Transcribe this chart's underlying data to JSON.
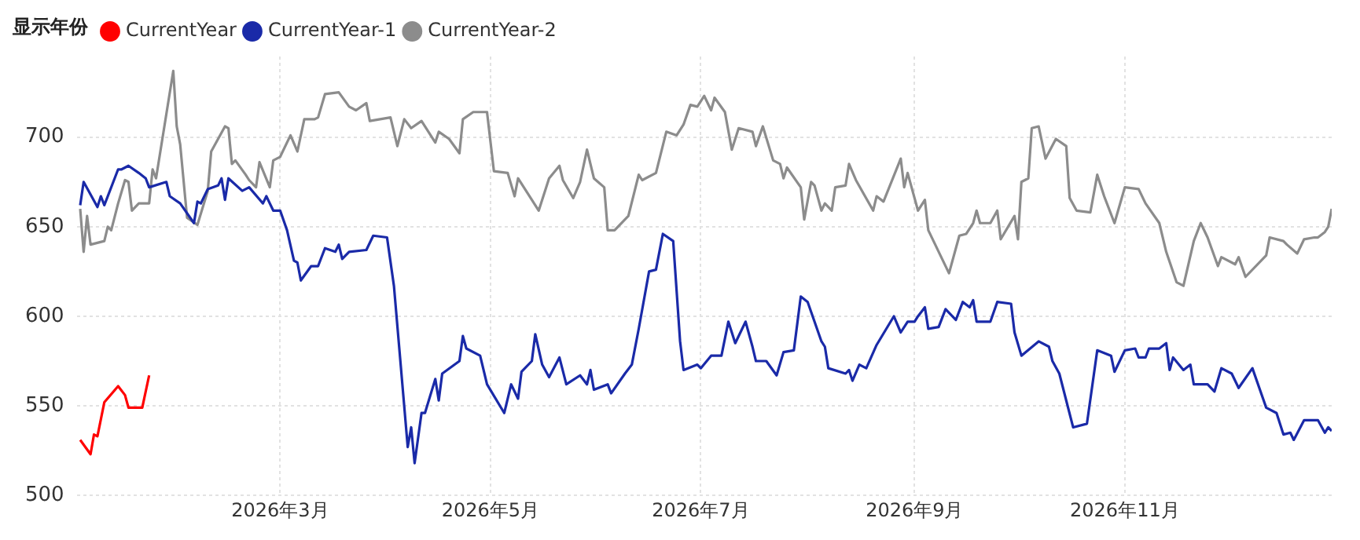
{
  "chart_data": {
    "type": "line",
    "legend_title": "显示年份",
    "legend": "top left",
    "grid": true,
    "marker": "none",
    "line_style": "solid",
    "ylim": [
      500,
      745
    ],
    "yticks": [
      500,
      550,
      600,
      650,
      700
    ],
    "xlim": [
      "2026-01-01",
      "2026-12-31"
    ],
    "xticks": [
      {
        "value": "2026-03-01",
        "label": "2026年3月"
      },
      {
        "value": "2026-05-01",
        "label": "2026年5月"
      },
      {
        "value": "2026-07-01",
        "label": "2026年7月"
      },
      {
        "value": "2026-09-01",
        "label": "2026年9月"
      },
      {
        "value": "2026-11-01",
        "label": "2026年11月"
      }
    ],
    "series": [
      {
        "name": "CurrentYear",
        "color": "#ff0000",
        "x": [
          "2026-01-02",
          "2026-01-05",
          "2026-01-06",
          "2026-01-07",
          "2026-01-09",
          "2026-01-13",
          "2026-01-15",
          "2026-01-16",
          "2026-01-20",
          "2026-01-22"
        ],
        "values": [
          531,
          523,
          534,
          533,
          552,
          561,
          556,
          549,
          549,
          567
        ]
      },
      {
        "name": "CurrentYear-1",
        "color": "#1a2aa8",
        "x": [
          "2026-01-02",
          "2026-01-03",
          "2026-01-07",
          "2026-01-08",
          "2026-01-09",
          "2026-01-13",
          "2026-01-14",
          "2026-01-16",
          "2026-01-19",
          "2026-01-21",
          "2026-01-22",
          "2026-01-27",
          "2026-01-28",
          "2026-01-31",
          "2026-02-04",
          "2026-02-05",
          "2026-02-06",
          "2026-02-08",
          "2026-02-11",
          "2026-02-12",
          "2026-02-13",
          "2026-02-14",
          "2026-02-18",
          "2026-02-20",
          "2026-02-24",
          "2026-02-25",
          "2026-02-27",
          "2026-03-01",
          "2026-03-03",
          "2026-03-05",
          "2026-03-06",
          "2026-03-07",
          "2026-03-10",
          "2026-03-12",
          "2026-03-14",
          "2026-03-17",
          "2026-03-18",
          "2026-03-19",
          "2026-03-21",
          "2026-03-26",
          "2026-03-28",
          "2026-04-01",
          "2026-04-03",
          "2026-04-07",
          "2026-04-08",
          "2026-04-09",
          "2026-04-11",
          "2026-04-12",
          "2026-04-15",
          "2026-04-16",
          "2026-04-17",
          "2026-04-22",
          "2026-04-23",
          "2026-04-24",
          "2026-04-28",
          "2026-04-30",
          "2026-05-05",
          "2026-05-07",
          "2026-05-09",
          "2026-05-10",
          "2026-05-13",
          "2026-05-14",
          "2026-05-16",
          "2026-05-18",
          "2026-05-21",
          "2026-05-23",
          "2026-05-27",
          "2026-05-29",
          "2026-05-30",
          "2026-05-31",
          "2026-06-04",
          "2026-06-05",
          "2026-06-09",
          "2026-06-11",
          "2026-06-13",
          "2026-06-16",
          "2026-06-18",
          "2026-06-20",
          "2026-06-23",
          "2026-06-25",
          "2026-06-26",
          "2026-06-30",
          "2026-07-01",
          "2026-07-04",
          "2026-07-07",
          "2026-07-09",
          "2026-07-11",
          "2026-07-14",
          "2026-07-16",
          "2026-07-17",
          "2026-07-20",
          "2026-07-23",
          "2026-07-25",
          "2026-07-28",
          "2026-07-30",
          "2026-08-01",
          "2026-08-05",
          "2026-08-06",
          "2026-08-07",
          "2026-08-12",
          "2026-08-13",
          "2026-08-14",
          "2026-08-16",
          "2026-08-18",
          "2026-08-21",
          "2026-08-26",
          "2026-08-28",
          "2026-08-30",
          "2026-09-01",
          "2026-09-02",
          "2026-09-04",
          "2026-09-05",
          "2026-09-08",
          "2026-09-10",
          "2026-09-13",
          "2026-09-15",
          "2026-09-17",
          "2026-09-18",
          "2026-09-19",
          "2026-09-23",
          "2026-09-25",
          "2026-09-29",
          "2026-09-30",
          "2026-10-02",
          "2026-10-07",
          "2026-10-10",
          "2026-10-11",
          "2026-10-13",
          "2026-10-15",
          "2026-10-17",
          "2026-10-21",
          "2026-10-24",
          "2026-10-28",
          "2026-10-29",
          "2026-11-01",
          "2026-11-04",
          "2026-11-05",
          "2026-11-07",
          "2026-11-08",
          "2026-11-11",
          "2026-11-13",
          "2026-11-14",
          "2026-11-15",
          "2026-11-18",
          "2026-11-20",
          "2026-11-21",
          "2026-11-25",
          "2026-11-27",
          "2026-11-29",
          "2026-12-02",
          "2026-12-04",
          "2026-12-08",
          "2026-12-12",
          "2026-12-15",
          "2026-12-17",
          "2026-12-19",
          "2026-12-20",
          "2026-12-23",
          "2026-12-27",
          "2026-12-29",
          "2026-12-30",
          "2026-12-31"
        ],
        "values": [
          662,
          675,
          661,
          667,
          662,
          682,
          682,
          684,
          680,
          677,
          672,
          675,
          667,
          663,
          652,
          664,
          663,
          671,
          673,
          677,
          665,
          677,
          670,
          672,
          663,
          667,
          659,
          659,
          648,
          631,
          630,
          620,
          628,
          628,
          638,
          636,
          640,
          632,
          636,
          637,
          645,
          644,
          617,
          527,
          538,
          518,
          546,
          546,
          565,
          553,
          568,
          575,
          589,
          582,
          578,
          562,
          546,
          562,
          554,
          569,
          575,
          590,
          573,
          566,
          577,
          562,
          567,
          562,
          570,
          559,
          562,
          557,
          568,
          573,
          593,
          625,
          626,
          646,
          642,
          586,
          570,
          573,
          571,
          578,
          578,
          597,
          585,
          597,
          583,
          575,
          575,
          567,
          580,
          581,
          611,
          608,
          586,
          583,
          571,
          568,
          570,
          564,
          573,
          571,
          584,
          600,
          591,
          597,
          597,
          600,
          605,
          593,
          594,
          604,
          598,
          608,
          605,
          609,
          597,
          597,
          608,
          607,
          591,
          578,
          586,
          583,
          575,
          568,
          553,
          538,
          540,
          581,
          578,
          569,
          581,
          582,
          577,
          577,
          582,
          582,
          585,
          570,
          577,
          570,
          573,
          562,
          562,
          558,
          571,
          568,
          560,
          571,
          549,
          546,
          534,
          535,
          531,
          542,
          542,
          535,
          538,
          536
        ]
      },
      {
        "name": "CurrentYear-2",
        "color": "#8c8c8c",
        "x": [
          "2026-01-02",
          "2026-01-03",
          "2026-01-04",
          "2026-01-05",
          "2026-01-09",
          "2026-01-10",
          "2026-01-11",
          "2026-01-13",
          "2026-01-15",
          "2026-01-16",
          "2026-01-17",
          "2026-01-19",
          "2026-01-22",
          "2026-01-23",
          "2026-01-24",
          "2026-01-29",
          "2026-01-30",
          "2026-01-31",
          "2026-02-02",
          "2026-02-05",
          "2026-02-08",
          "2026-02-09",
          "2026-02-13",
          "2026-02-14",
          "2026-02-15",
          "2026-02-16",
          "2026-02-19",
          "2026-02-20",
          "2026-02-22",
          "2026-02-23",
          "2026-02-26",
          "2026-02-27",
          "2026-03-01",
          "2026-03-04",
          "2026-03-06",
          "2026-03-08",
          "2026-03-11",
          "2026-03-12",
          "2026-03-14",
          "2026-03-18",
          "2026-03-21",
          "2026-03-23",
          "2026-03-26",
          "2026-03-27",
          "2026-04-02",
          "2026-04-04",
          "2026-04-06",
          "2026-04-08",
          "2026-04-11",
          "2026-04-15",
          "2026-04-16",
          "2026-04-19",
          "2026-04-22",
          "2026-04-23",
          "2026-04-26",
          "2026-04-28",
          "2026-04-30",
          "2026-05-02",
          "2026-05-06",
          "2026-05-08",
          "2026-05-09",
          "2026-05-15",
          "2026-05-18",
          "2026-05-21",
          "2026-05-22",
          "2026-05-25",
          "2026-05-27",
          "2026-05-29",
          "2026-05-31",
          "2026-06-03",
          "2026-06-04",
          "2026-06-06",
          "2026-06-10",
          "2026-06-13",
          "2026-06-14",
          "2026-06-18",
          "2026-06-21",
          "2026-06-24",
          "2026-06-26",
          "2026-06-28",
          "2026-06-30",
          "2026-07-02",
          "2026-07-04",
          "2026-07-05",
          "2026-07-08",
          "2026-07-10",
          "2026-07-12",
          "2026-07-16",
          "2026-07-17",
          "2026-07-19",
          "2026-07-22",
          "2026-07-24",
          "2026-07-25",
          "2026-07-26",
          "2026-07-30",
          "2026-07-31",
          "2026-08-02",
          "2026-08-03",
          "2026-08-05",
          "2026-08-06",
          "2026-08-08",
          "2026-08-09",
          "2026-08-12",
          "2026-08-13",
          "2026-08-15",
          "2026-08-20",
          "2026-08-21",
          "2026-08-23",
          "2026-08-28",
          "2026-08-29",
          "2026-08-30",
          "2026-09-02",
          "2026-09-04",
          "2026-09-05",
          "2026-09-07",
          "2026-09-11",
          "2026-09-14",
          "2026-09-16",
          "2026-09-18",
          "2026-09-19",
          "2026-09-20",
          "2026-09-23",
          "2026-09-25",
          "2026-09-26",
          "2026-09-30",
          "2026-10-01",
          "2026-10-02",
          "2026-10-04",
          "2026-10-05",
          "2026-10-07",
          "2026-10-09",
          "2026-10-12",
          "2026-10-15",
          "2026-10-16",
          "2026-10-18",
          "2026-10-22",
          "2026-10-24",
          "2026-10-26",
          "2026-10-29",
          "2026-11-01",
          "2026-11-05",
          "2026-11-07",
          "2026-11-11",
          "2026-11-13",
          "2026-11-16",
          "2026-11-18",
          "2026-11-21",
          "2026-11-23",
          "2026-11-25",
          "2026-11-28",
          "2026-11-29",
          "2026-12-03",
          "2026-12-04",
          "2026-12-06",
          "2026-12-12",
          "2026-12-13",
          "2026-12-17",
          "2026-12-18",
          "2026-12-21",
          "2026-12-23",
          "2026-12-26",
          "2026-12-27",
          "2026-12-29",
          "2026-12-30",
          "2026-12-31"
        ],
        "values": [
          660,
          636,
          656,
          640,
          642,
          650,
          648,
          663,
          676,
          675,
          659,
          663,
          663,
          682,
          677,
          737,
          706,
          696,
          655,
          651,
          670,
          692,
          706,
          705,
          685,
          687,
          679,
          676,
          672,
          686,
          672,
          687,
          689,
          701,
          692,
          710,
          710,
          711,
          724,
          725,
          717,
          715,
          719,
          709,
          711,
          695,
          710,
          705,
          709,
          697,
          703,
          699,
          691,
          710,
          714,
          714,
          714,
          681,
          680,
          667,
          677,
          659,
          677,
          684,
          676,
          666,
          675,
          693,
          677,
          672,
          648,
          648,
          656,
          679,
          676,
          680,
          703,
          701,
          707,
          718,
          717,
          723,
          715,
          722,
          714,
          693,
          705,
          703,
          695,
          706,
          687,
          685,
          677,
          683,
          672,
          654,
          675,
          673,
          659,
          663,
          659,
          672,
          673,
          685,
          676,
          659,
          667,
          664,
          688,
          672,
          680,
          659,
          665,
          648,
          640,
          624,
          645,
          646,
          652,
          659,
          652,
          652,
          659,
          643,
          656,
          643,
          675,
          677,
          705,
          706,
          688,
          699,
          695,
          666,
          659,
          658,
          679,
          667,
          652,
          672,
          671,
          663,
          652,
          636,
          619,
          617,
          642,
          652,
          644,
          628,
          633,
          629,
          633,
          622,
          634,
          644,
          642,
          640,
          635,
          643,
          644,
          644,
          647,
          650,
          660
        ]
      }
    ]
  }
}
